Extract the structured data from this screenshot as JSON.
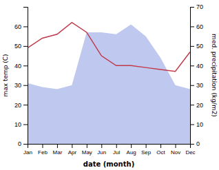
{
  "chart_data": {
    "type": "line",
    "categories": [
      "Jan",
      "Feb",
      "Mar",
      "Apr",
      "May",
      "Jun",
      "Jul",
      "Aug",
      "Sep",
      "Oct",
      "Nov",
      "Dec"
    ],
    "series": [
      {
        "type": "area",
        "axis": "y2",
        "color": "#bfc8ef",
        "values": [
          31,
          29,
          28,
          30,
          57,
          57,
          56,
          61,
          55,
          44,
          30,
          28
        ]
      },
      {
        "type": "line",
        "color": "#c0394a",
        "values": [
          49,
          54,
          56,
          62,
          57,
          45,
          40,
          40,
          39,
          38,
          37,
          47
        ]
      }
    ],
    "x_label": "date (month)",
    "y_label": "max temp (C)",
    "y2_label": "med. precipitation (kg/m2)",
    "ylim": [
      0,
      70
    ],
    "yticks": [
      0,
      10,
      20,
      30,
      40,
      50,
      60
    ],
    "y2lim": [
      0,
      70
    ],
    "y2ticks": [
      0,
      10,
      20,
      30,
      40,
      50,
      60,
      70
    ],
    "grid": false
  }
}
